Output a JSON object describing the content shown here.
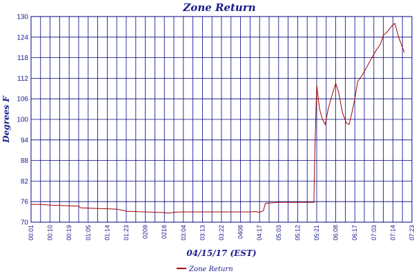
{
  "chart_data": {
    "type": "line",
    "title": "Zone Return",
    "xlabel": "04/15/17 (EST)",
    "ylabel": "Degrees F",
    "ylim": [
      70,
      130
    ],
    "y_ticks": [
      70,
      76,
      82,
      88,
      94,
      100,
      106,
      112,
      118,
      124,
      130
    ],
    "x_ticks": [
      "00:01",
      "00:10",
      "00:19",
      "01:05",
      "01:14",
      "01:23",
      "0209",
      "0218",
      "03:04",
      "03:13",
      "03:22",
      "0408",
      "04:17",
      "05:03",
      "05:12",
      "05:21",
      "06:08",
      "06:17",
      "07:03",
      "07:14",
      "07:23"
    ],
    "grid": true,
    "legend_position": "bottom-center",
    "colors": {
      "series": "#a00000",
      "axis": "#1a1a8c",
      "grid": "#000080"
    },
    "series": [
      {
        "name": "Zone Return",
        "points": [
          [
            0,
            75.2
          ],
          [
            0.5,
            75.2
          ],
          [
            1,
            75.0
          ],
          [
            1.5,
            74.9
          ],
          [
            2,
            74.8
          ],
          [
            2.5,
            74.7
          ],
          [
            2.6,
            74.2
          ],
          [
            3,
            74.1
          ],
          [
            3.5,
            74.0
          ],
          [
            4,
            73.9
          ],
          [
            4.5,
            73.8
          ],
          [
            4.8,
            73.5
          ],
          [
            5,
            73.2
          ],
          [
            5.5,
            73.1
          ],
          [
            6,
            73.0
          ],
          [
            6.5,
            72.9
          ],
          [
            7,
            72.8
          ],
          [
            7.2,
            72.6
          ],
          [
            7.5,
            72.9
          ],
          [
            8,
            73.0
          ],
          [
            8.5,
            73.0
          ],
          [
            9,
            73.0
          ],
          [
            9.5,
            73.0
          ],
          [
            10,
            73.0
          ],
          [
            10.5,
            73.0
          ],
          [
            11,
            73.0
          ],
          [
            11.5,
            73.0
          ],
          [
            11.8,
            73.1
          ],
          [
            12,
            72.9
          ],
          [
            12.2,
            73.3
          ],
          [
            12.3,
            75.5
          ],
          [
            12.5,
            75.6
          ],
          [
            13,
            75.8
          ],
          [
            13.5,
            75.8
          ],
          [
            14,
            75.8
          ],
          [
            14.5,
            75.8
          ],
          [
            14.85,
            75.8
          ],
          [
            14.9,
            90
          ],
          [
            15.0,
            110
          ],
          [
            15.15,
            103
          ],
          [
            15.3,
            100
          ],
          [
            15.45,
            98.5
          ],
          [
            15.6,
            103
          ],
          [
            15.85,
            108
          ],
          [
            16.0,
            110.5
          ],
          [
            16.15,
            108
          ],
          [
            16.35,
            102
          ],
          [
            16.55,
            99
          ],
          [
            16.7,
            98.5
          ],
          [
            16.85,
            102
          ],
          [
            17.0,
            106
          ],
          [
            17.15,
            111
          ],
          [
            17.4,
            113
          ],
          [
            17.6,
            115
          ],
          [
            17.8,
            117
          ],
          [
            18.1,
            120
          ],
          [
            18.35,
            122
          ],
          [
            18.5,
            124.5
          ],
          [
            18.7,
            125.5
          ],
          [
            18.9,
            127
          ],
          [
            19.1,
            128
          ],
          [
            19.3,
            124
          ],
          [
            19.5,
            121
          ],
          [
            19.6,
            119.5
          ]
        ]
      }
    ]
  }
}
